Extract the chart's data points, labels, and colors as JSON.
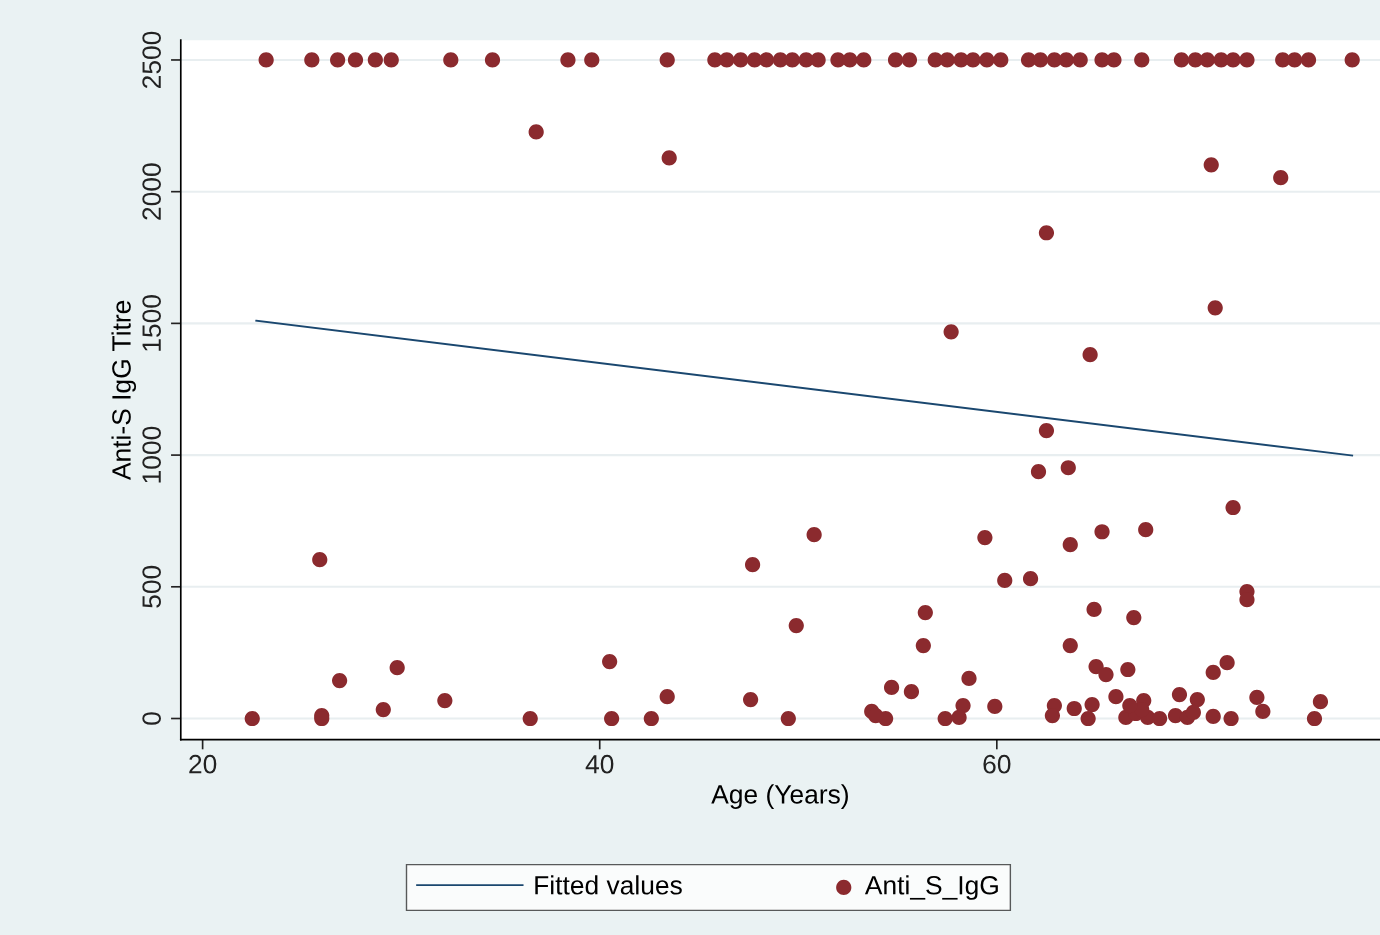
{
  "chart_data": {
    "type": "scatter",
    "xlabel": "Age (Years)",
    "ylabel": "Anti-S IgG Titre",
    "xlim": [
      18.9,
      79.3
    ],
    "ylim": [
      -80,
      2575
    ],
    "xticks": [
      20,
      40,
      60
    ],
    "yticks": [
      0,
      500,
      1000,
      1500,
      2000,
      2500
    ],
    "grid": "y",
    "legend": "bottom",
    "series": [
      {
        "name": "Fitted values",
        "type": "line",
        "color": "#1a476f",
        "line_style": "solid",
        "x": [
          22.7,
          77.9
        ],
        "values": [
          1510,
          998
        ]
      },
      {
        "name": "Anti_S_IgG",
        "type": "scatter",
        "marker": "circle",
        "color": "#8b2a2e",
        "x": [
          23.2,
          25.5,
          26.8,
          27.7,
          28.7,
          29.5,
          32.5,
          34.6,
          38.4,
          39.6,
          43.4,
          45.8,
          46.4,
          47.1,
          47.8,
          48.4,
          49.1,
          49.7,
          50.4,
          51.0,
          52.0,
          52.6,
          53.3,
          54.9,
          55.6,
          56.9,
          57.5,
          58.2,
          58.8,
          59.5,
          60.2,
          61.6,
          62.2,
          62.9,
          63.5,
          64.2,
          65.3,
          65.9,
          67.3,
          69.3,
          70.0,
          70.6,
          71.3,
          71.9,
          72.6,
          74.4,
          75.0,
          75.7,
          77.9,
          36.8,
          43.5,
          70.8,
          74.3,
          62.5,
          71.0,
          57.7,
          64.7,
          62.5,
          62.1,
          63.6,
          71.9,
          50.8,
          67.5,
          59.4,
          65.3,
          63.7,
          25.9,
          47.7,
          60.4,
          61.7,
          72.6,
          72.6,
          56.4,
          64.9,
          66.9,
          49.9,
          56.3,
          63.7,
          40.5,
          71.6,
          29.8,
          65.0,
          65.5,
          66.6,
          70.9,
          26.9,
          58.6,
          54.7,
          55.7,
          43.4,
          47.6,
          32.2,
          73.1,
          66.0,
          67.4,
          69.2,
          70.1,
          76.3,
          29.1,
          59.9,
          58.3,
          62.9,
          63.9,
          64.8,
          73.4,
          53.7,
          22.5,
          26.0,
          26.0,
          36.5,
          40.6,
          42.6,
          49.5,
          54.4,
          53.9,
          57.4,
          58.1,
          62.8,
          64.6,
          66.5,
          67.0,
          67.6,
          68.2,
          67.3,
          69.0,
          69.6,
          69.9,
          70.9,
          71.8,
          76.0,
          66.7
        ],
        "values": [
          2500,
          2500,
          2500,
          2500,
          2500,
          2500,
          2500,
          2500,
          2500,
          2500,
          2500,
          2500,
          2500,
          2500,
          2500,
          2500,
          2500,
          2500,
          2500,
          2500,
          2500,
          2500,
          2500,
          2500,
          2500,
          2500,
          2500,
          2500,
          2500,
          2500,
          2500,
          2500,
          2500,
          2500,
          2500,
          2500,
          2500,
          2500,
          2500,
          2500,
          2500,
          2500,
          2500,
          2500,
          2500,
          2500,
          2500,
          2500,
          2500,
          2227,
          2128,
          2102,
          2053,
          1844,
          1559,
          1468,
          1381,
          1093,
          937,
          952,
          801,
          698,
          717,
          687,
          709,
          660,
          603,
          584,
          524,
          531,
          482,
          451,
          402,
          414,
          383,
          353,
          277,
          277,
          216,
          212,
          193,
          197,
          167,
          186,
          175,
          144,
          152,
          118,
          102,
          83,
          72,
          68,
          80,
          83,
          68,
          91,
          72,
          64,
          34,
          46,
          49,
          49,
          38,
          53,
          27,
          27,
          0,
          11,
          0,
          0,
          0,
          0,
          0,
          0,
          11,
          0,
          4,
          11,
          0,
          4,
          19,
          4,
          0,
          34,
          11,
          4,
          23,
          8,
          0,
          0,
          49
        ]
      }
    ]
  }
}
